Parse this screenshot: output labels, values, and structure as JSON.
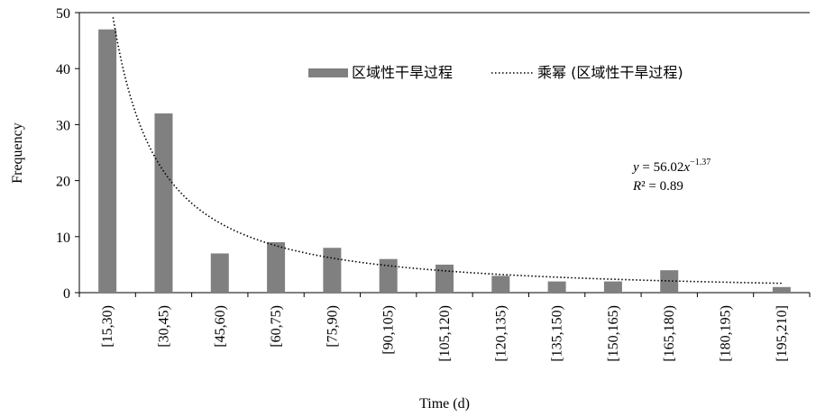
{
  "chart_data": {
    "type": "bar",
    "xlabel": "Time (d)",
    "ylabel": "Frequency",
    "ylim": [
      0,
      50
    ],
    "yticks": [
      0,
      10,
      20,
      30,
      40,
      50
    ],
    "categories": [
      "[15,30)",
      "[30,45)",
      "[45,60)",
      "[60,75)",
      "[75,90)",
      "[90,105)",
      "[105,120)",
      "[120,135)",
      "[135,150)",
      "[150,165)",
      "[165,180)",
      "[180,195)",
      "[195,210]"
    ],
    "series": [
      {
        "name": "区域性干旱过程",
        "type": "bar",
        "values": [
          47,
          32,
          7,
          9,
          8,
          6,
          5,
          3,
          2,
          2,
          4,
          0,
          1
        ],
        "color": "#808080"
      },
      {
        "name": "乘幂 (区域性干旱过程)",
        "type": "power-trendline",
        "a": 56.02,
        "b": -1.37,
        "style": "dotted",
        "color": "#000000"
      }
    ],
    "annotation": {
      "equation_prefix": "y",
      "equation_middle": " = 56.02",
      "equation_var": "x",
      "equation_exponent": "−1.37",
      "r2_prefix": "R",
      "r2_rest": "² = 0.89"
    },
    "legend_position": "top-right",
    "grid": false
  }
}
